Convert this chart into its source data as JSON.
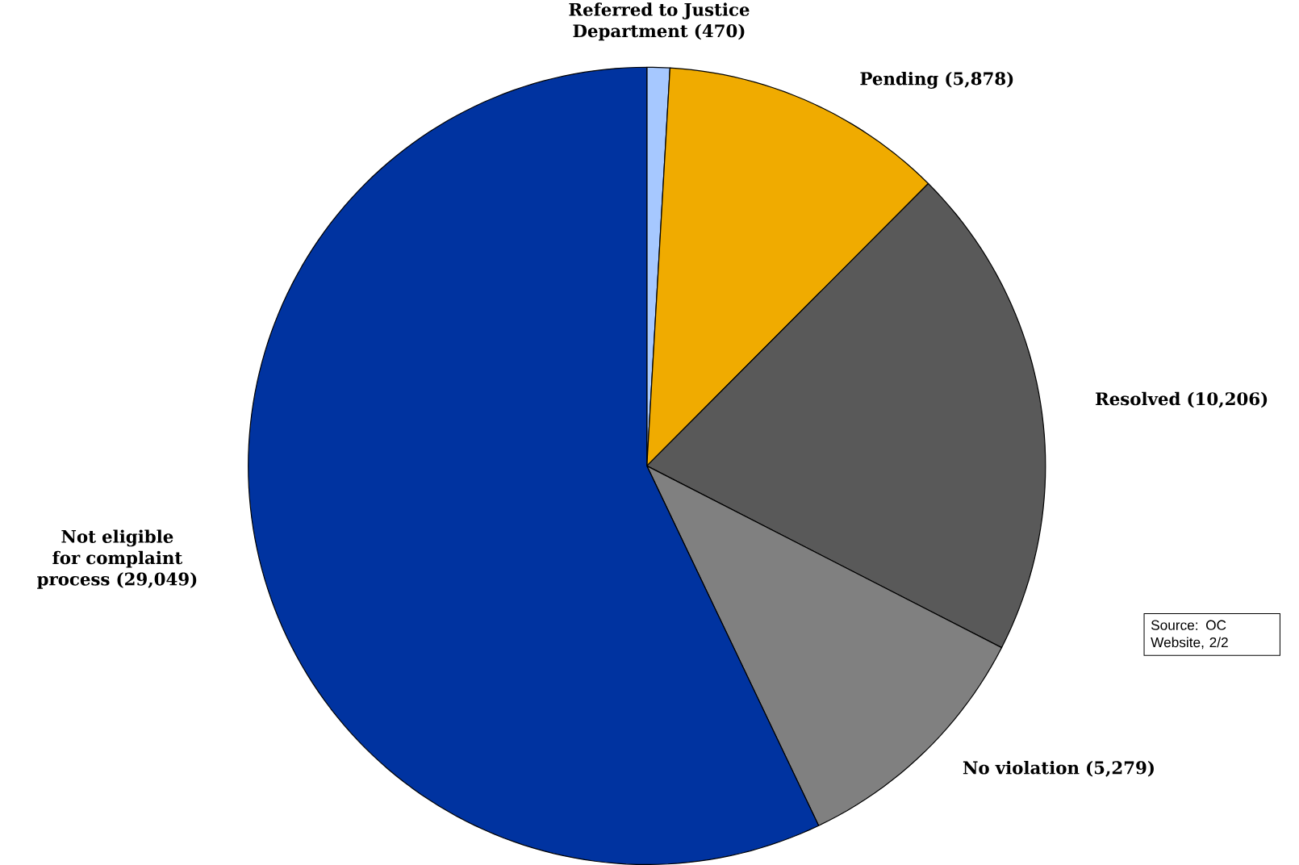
{
  "chart_data": {
    "type": "pie",
    "categories": [
      "Referred to Justice Department (470)",
      "Pending (5,878)",
      "Resolved (10,206)",
      "No violation (5,279)",
      "Not eligible for complaint process (29,049)"
    ],
    "values": [
      470,
      5878,
      10206,
      5279,
      29049
    ],
    "colors": [
      "#a6c8ff",
      "#f0ab00",
      "#595959",
      "#808080",
      "#0033a0"
    ],
    "annotations": [
      "Source: OC Website, 2/2"
    ]
  }
}
